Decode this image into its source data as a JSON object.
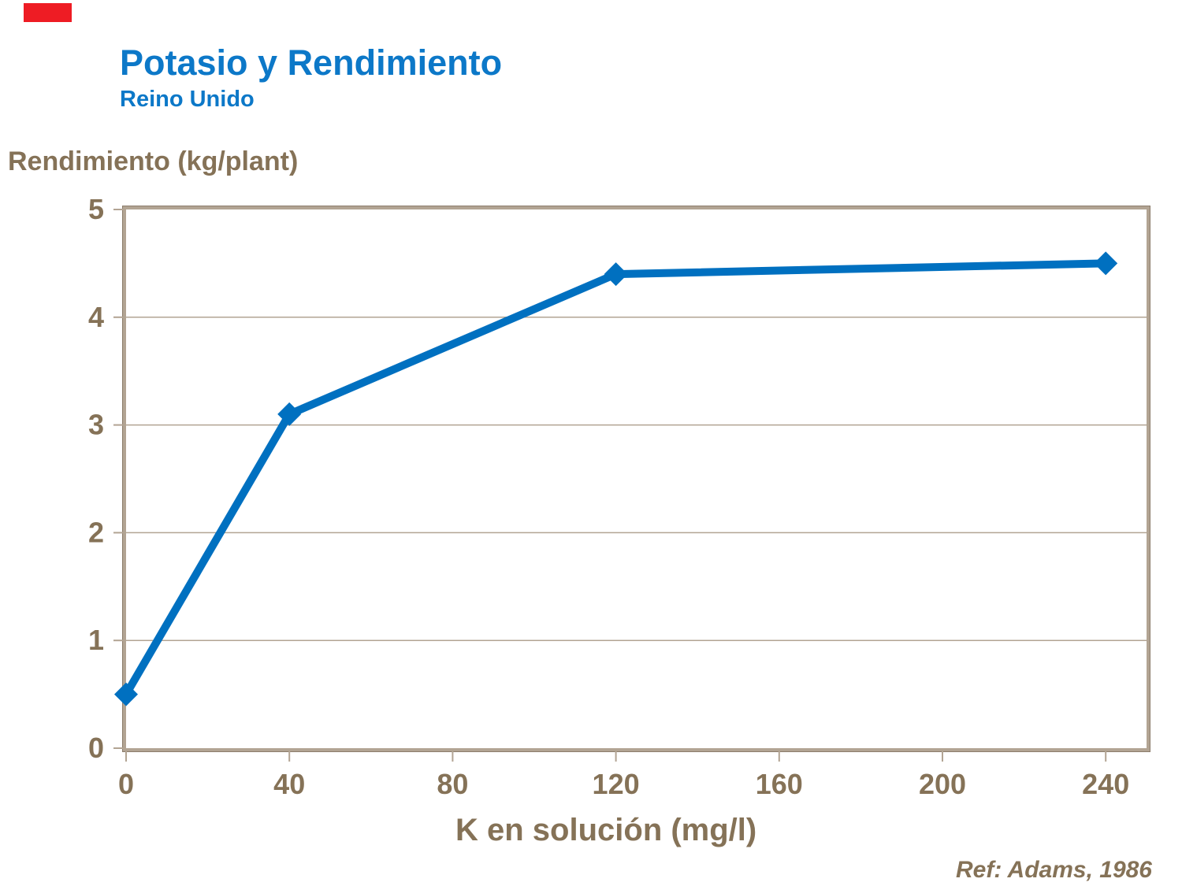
{
  "header": {
    "title": "Potasio y Rendimiento",
    "subtitle": "Reino Unido"
  },
  "footer": {
    "reference": "Ref: Adams, 1986"
  },
  "colors": {
    "background": "#ffffff",
    "title_blue": "#0c78c8",
    "line_blue": "#0070c0",
    "text_brown": "#857257",
    "axis_tan": "#b2a493",
    "axis_edge": "#8c7d6c",
    "grid_tan": "#b2a493",
    "accent_red": "#ee1c24"
  },
  "chart_data": {
    "type": "line",
    "title": "Potasio y Rendimiento",
    "subtitle": "Reino Unido",
    "xlabel": "K en solución (mg/l)",
    "ylabel": "Rendimiento (kg/plant)",
    "series": [
      {
        "name": "Rendimiento",
        "x": [
          0,
          40,
          120,
          240
        ],
        "y": [
          0.5,
          3.1,
          4.4,
          4.5
        ]
      }
    ],
    "xlim": [
      0,
      250
    ],
    "ylim": [
      0,
      5
    ],
    "x_ticks": [
      0,
      40,
      80,
      120,
      160,
      200,
      240
    ],
    "y_ticks": [
      0,
      1,
      2,
      3,
      4,
      5
    ],
    "grid": "horizontal",
    "marker": "diamond",
    "legend_position": "none"
  }
}
